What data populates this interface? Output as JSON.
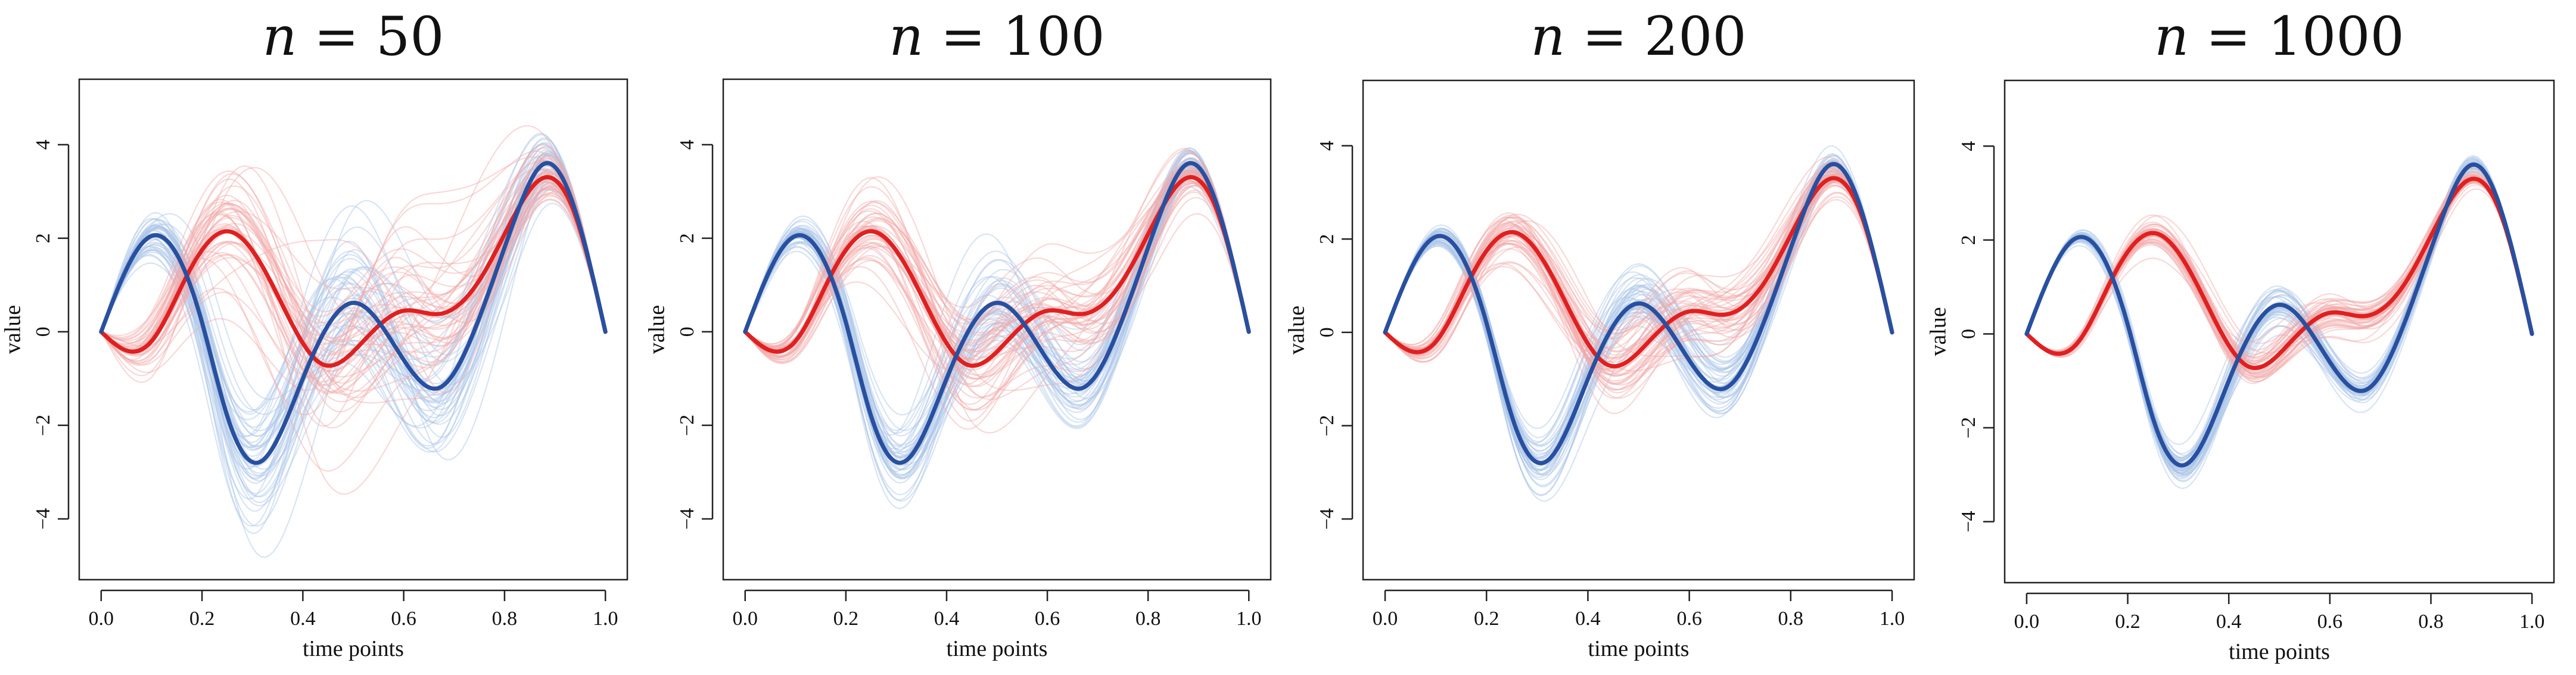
{
  "chart_data": [
    {
      "type": "line",
      "title": "n = 50",
      "title_var": "n",
      "title_value": "50",
      "xlabel": "time points",
      "ylabel": "value",
      "xlim": [
        0,
        1
      ],
      "ylim": [
        -5.3,
        5.4
      ],
      "xticks": [
        0.0,
        0.2,
        0.4,
        0.6,
        0.8,
        1.0
      ],
      "xtick_labels": [
        "0.0",
        "0.2",
        "0.4",
        "0.6",
        "0.8",
        "1.0"
      ],
      "yticks": [
        -4,
        -2,
        0,
        2,
        4
      ],
      "ytick_labels": [
        "−4",
        "−2",
        "0",
        "2",
        "4"
      ],
      "noise_sd": 1.4,
      "sample_lines_per_group": 45
    },
    {
      "type": "line",
      "title": "n = 100",
      "title_var": "n",
      "title_value": "100",
      "xlabel": "time points",
      "ylabel": "value",
      "xlim": [
        0,
        1
      ],
      "ylim": [
        -5.3,
        5.4
      ],
      "xticks": [
        0.0,
        0.2,
        0.4,
        0.6,
        0.8,
        1.0
      ],
      "xtick_labels": [
        "0.0",
        "0.2",
        "0.4",
        "0.6",
        "0.8",
        "1.0"
      ],
      "yticks": [
        -4,
        -2,
        0,
        2,
        4
      ],
      "ytick_labels": [
        "−4",
        "−2",
        "0",
        "2",
        "4"
      ],
      "noise_sd": 0.9,
      "sample_lines_per_group": 45
    },
    {
      "type": "line",
      "title": "n = 200",
      "title_var": "n",
      "title_value": "200",
      "xlabel": "time points",
      "ylabel": "value",
      "xlim": [
        0,
        1
      ],
      "ylim": [
        -5.3,
        5.4
      ],
      "xticks": [
        0.0,
        0.2,
        0.4,
        0.6,
        0.8,
        1.0
      ],
      "xtick_labels": [
        "0.0",
        "0.2",
        "0.4",
        "0.6",
        "0.8",
        "1.0"
      ],
      "yticks": [
        -4,
        -2,
        0,
        2,
        4
      ],
      "ytick_labels": [
        "−4",
        "−2",
        "0",
        "2",
        "4"
      ],
      "noise_sd": 0.6,
      "sample_lines_per_group": 45
    },
    {
      "type": "line",
      "title": "n = 1000",
      "title_var": "n",
      "title_value": "1000",
      "xlabel": "time points",
      "ylabel": "value",
      "xlim": [
        0,
        1
      ],
      "ylim": [
        -5.3,
        5.4
      ],
      "xticks": [
        0.0,
        0.2,
        0.4,
        0.6,
        0.8,
        1.0
      ],
      "xtick_labels": [
        "0.0",
        "0.2",
        "0.4",
        "0.6",
        "0.8",
        "1.0"
      ],
      "yticks": [
        -4,
        -2,
        0,
        2,
        4
      ],
      "ytick_labels": [
        "−4",
        "−2",
        "0",
        "2",
        "4"
      ],
      "noise_sd": 0.3,
      "sample_lines_per_group": 45
    }
  ],
  "series": [
    {
      "name": "blue",
      "color": "#2850a0",
      "sample_color": "#a9c3e6",
      "x": [
        0.0,
        0.1,
        0.2,
        0.25,
        0.31,
        0.4,
        0.5,
        0.6,
        0.67,
        0.75,
        0.82,
        0.88,
        0.94,
        1.0
      ],
      "values": [
        0.0,
        2.05,
        0.2,
        -1.8,
        -2.8,
        -1.0,
        0.62,
        -0.6,
        -1.2,
        0.3,
        2.4,
        3.6,
        2.6,
        0.0
      ]
    },
    {
      "name": "red",
      "color": "#e02020",
      "sample_color": "#f2a8a8",
      "x": [
        0.0,
        0.05,
        0.1,
        0.17,
        0.25,
        0.33,
        0.44,
        0.52,
        0.6,
        0.67,
        0.75,
        0.82,
        0.88,
        0.94,
        1.0
      ],
      "values": [
        0.0,
        -0.4,
        -0.2,
        1.2,
        2.15,
        1.2,
        -0.7,
        -0.2,
        0.45,
        0.38,
        1.1,
        2.5,
        3.3,
        2.5,
        0.0
      ]
    }
  ]
}
